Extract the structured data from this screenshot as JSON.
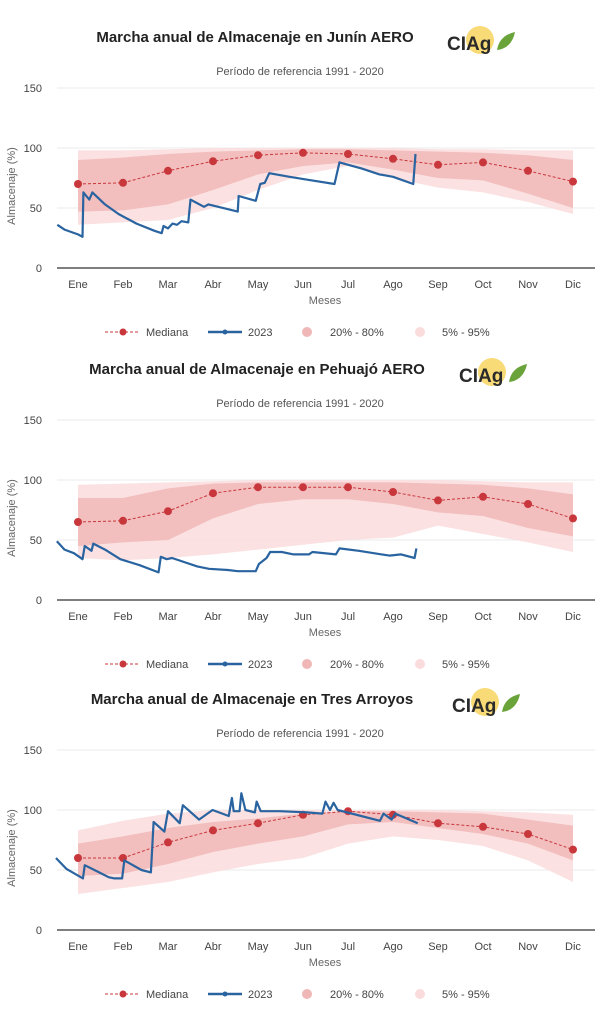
{
  "colors": {
    "median": "#c8373b",
    "series2023": "#2a64a0",
    "band20_80": "#f0b7b7",
    "band5_95": "#fadcdc",
    "logo_sun": "#f5cf4a",
    "logo_leaf": "#6aa33a"
  },
  "logo_text": "CIAg",
  "legend": {
    "median": "Mediana",
    "series2023": "2023",
    "band20_80": "20% - 80%",
    "band5_95": "5% - 95%"
  },
  "chart_data": [
    {
      "type": "line",
      "title": "Marcha anual de Almacenaje en Junín AERO",
      "subtitle": "Período de referencia 1991 - 2020",
      "xlabel": "Meses",
      "ylabel": "Almacenaje (%)",
      "categories": [
        "Ene",
        "Feb",
        "Mar",
        "Abr",
        "May",
        "Jun",
        "Jul",
        "Ago",
        "Sep",
        "Oct",
        "Nov",
        "Dic"
      ],
      "yticks": [
        0,
        50,
        100,
        150
      ],
      "ylim": [
        0,
        150
      ],
      "grid": true,
      "legend_position": "bottom",
      "median": [
        70,
        71,
        81,
        89,
        94,
        96,
        95,
        91,
        86,
        88,
        81,
        72
      ],
      "band20_80": {
        "low": [
          47,
          48,
          53,
          65,
          78,
          85,
          88,
          82,
          75,
          73,
          62,
          50
        ],
        "high": [
          90,
          92,
          95,
          97,
          98,
          99,
          99,
          98,
          97,
          96,
          94,
          90
        ]
      },
      "band5_95": {
        "low": [
          36,
          38,
          40,
          50,
          65,
          78,
          85,
          75,
          67,
          63,
          55,
          45
        ],
        "high": [
          98,
          98,
          99,
          100,
          100,
          100,
          100,
          100,
          99,
          99,
          98,
          98
        ]
      },
      "series2023": {
        "x": [
          0.54,
          0.7,
          1.0,
          1.1,
          1.12,
          1.25,
          1.32,
          1.6,
          1.9,
          2.3,
          2.7,
          2.86,
          2.9,
          3.0,
          3.1,
          3.2,
          3.3,
          3.45,
          3.5,
          3.8,
          3.9,
          4.55,
          4.57,
          4.95,
          5.05,
          5.15,
          5.25,
          5.7,
          6.2,
          6.7,
          6.81,
          7.3,
          7.7,
          8.0,
          8.45,
          8.5
        ],
        "y": [
          36,
          32,
          28,
          26,
          63,
          57,
          63,
          53,
          45,
          37,
          31,
          29,
          35,
          33,
          37,
          36,
          39,
          38,
          57,
          51,
          53,
          47,
          60,
          56,
          70,
          71,
          79,
          76,
          73,
          70,
          88,
          83,
          78,
          76,
          70,
          95
        ]
      }
    },
    {
      "type": "line",
      "title": "Marcha anual de Almacenaje en Pehuajó AERO",
      "subtitle": "Período de referencia 1991 - 2020",
      "xlabel": "Meses",
      "ylabel": "Almacenaje (%)",
      "categories": [
        "Ene",
        "Feb",
        "Mar",
        "Abr",
        "May",
        "Jun",
        "Jul",
        "Ago",
        "Sep",
        "Oct",
        "Nov",
        "Dic"
      ],
      "yticks": [
        0,
        50,
        100,
        150
      ],
      "ylim": [
        0,
        150
      ],
      "grid": true,
      "legend_position": "bottom",
      "median": [
        65,
        66,
        74,
        89,
        94,
        94,
        94,
        90,
        83,
        86,
        80,
        68
      ],
      "band20_80": {
        "low": [
          45,
          48,
          50,
          68,
          80,
          84,
          84,
          80,
          73,
          70,
          60,
          53
        ],
        "high": [
          85,
          85,
          93,
          97,
          98,
          98,
          98,
          98,
          97,
          96,
          93,
          88
        ]
      },
      "band5_95": {
        "low": [
          35,
          33,
          35,
          38,
          42,
          46,
          50,
          52,
          62,
          55,
          48,
          40
        ],
        "high": [
          96,
          97,
          98,
          99,
          100,
          100,
          100,
          100,
          100,
          99,
          98,
          98
        ]
      },
      "series2023": {
        "x": [
          0.53,
          0.7,
          0.91,
          1.1,
          1.15,
          1.3,
          1.34,
          1.6,
          1.94,
          2.37,
          2.79,
          2.84,
          2.97,
          3.09,
          3.65,
          3.91,
          4.33,
          4.55,
          4.95,
          5.02,
          5.19,
          5.27,
          5.53,
          5.79,
          6.13,
          6.21,
          6.73,
          6.81,
          7.24,
          7.75,
          7.92,
          8.18,
          8.48,
          8.52
        ],
        "y": [
          49,
          42,
          39,
          34,
          45,
          41,
          47,
          42,
          34,
          29,
          23,
          36,
          34,
          35,
          28,
          26,
          25,
          24,
          24,
          30,
          35,
          40,
          40,
          38,
          38,
          40,
          38,
          43,
          41,
          38,
          37,
          38,
          35,
          43
        ]
      }
    },
    {
      "type": "line",
      "title": "Marcha anual de Almacenaje en Tres Arroyos",
      "subtitle": "Período de referencia 1991 - 2020",
      "xlabel": "Meses",
      "ylabel": "Almacenaje (%)",
      "categories": [
        "Ene",
        "Feb",
        "Mar",
        "Abr",
        "May",
        "Jun",
        "Jul",
        "Ago",
        "Sep",
        "Oct",
        "Nov",
        "Dic"
      ],
      "yticks": [
        0,
        50,
        100,
        150
      ],
      "ylim": [
        0,
        150
      ],
      "grid": true,
      "legend_position": "bottom",
      "median": [
        60,
        60,
        73,
        83,
        89,
        96,
        99,
        96,
        89,
        86,
        80,
        67
      ],
      "band20_80": {
        "low": [
          45,
          47,
          55,
          65,
          72,
          78,
          88,
          90,
          85,
          80,
          72,
          58
        ],
        "high": [
          72,
          78,
          85,
          90,
          93,
          97,
          99,
          99,
          98,
          97,
          92,
          87
        ]
      },
      "band5_95": {
        "low": [
          30,
          35,
          40,
          48,
          55,
          60,
          72,
          78,
          75,
          70,
          58,
          40
        ],
        "high": [
          83,
          91,
          97,
          100,
          100,
          100,
          100,
          100,
          100,
          99,
          98,
          96
        ]
      },
      "series2023": {
        "x": [
          0.51,
          0.74,
          1.11,
          1.15,
          1.47,
          1.68,
          1.81,
          1.98,
          2.03,
          2.41,
          2.62,
          2.68,
          2.92,
          3.0,
          3.26,
          3.33,
          3.69,
          3.99,
          4.35,
          4.42,
          4.46,
          4.59,
          4.63,
          4.72,
          4.93,
          4.97,
          5.06,
          5.49,
          6.09,
          6.43,
          6.5,
          6.6,
          6.68,
          6.77,
          7.71,
          7.79,
          7.97,
          8.05,
          8.55
        ],
        "y": [
          60,
          51,
          43,
          54,
          48,
          44,
          43,
          43,
          58,
          50,
          48,
          90,
          82,
          99,
          89,
          104,
          92,
          100,
          95,
          110,
          99,
          99,
          114,
          100,
          98,
          107,
          99,
          99,
          98,
          97,
          107,
          100,
          106,
          100,
          91,
          97,
          92,
          97,
          89
        ]
      }
    }
  ]
}
